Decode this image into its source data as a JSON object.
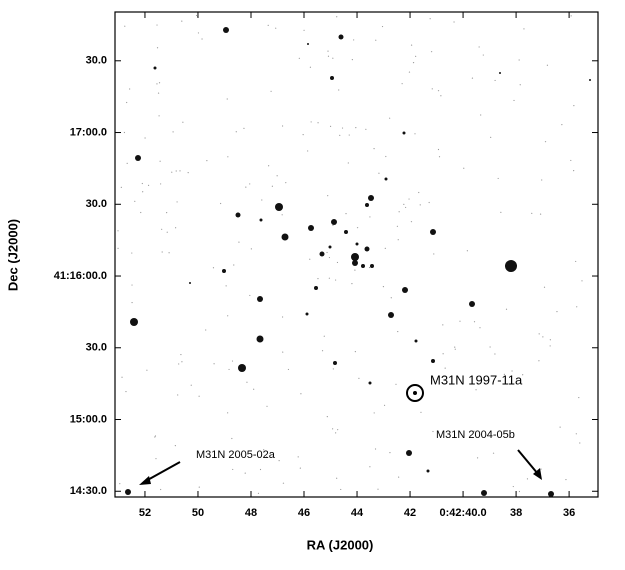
{
  "chart_data": {
    "type": "image",
    "x_label": "RA (J2000)",
    "y_label": "Dec (J2000)",
    "xlim": [
      53.13,
      34.91
    ],
    "ylim": [
      14.46,
      17.84
    ],
    "xticks": [
      52.0,
      50.0,
      48.0,
      46.0,
      44.0,
      42.0,
      {
        "value": 40.0,
        "label": "0:42:40.0"
      },
      38.0,
      36.0
    ],
    "xtick_labels": [
      "52.0",
      "50.0",
      "48.0",
      "46.0",
      "44.0",
      "42.0",
      "0:42:40.0",
      "38.0",
      "36.0"
    ],
    "yticks": [
      {
        "value": 14.5,
        "label": "14:30.0"
      },
      {
        "value": 15.0,
        "label": "15:00.0"
      },
      {
        "value": 15.5,
        "label": "30.0"
      },
      {
        "value": 16.0,
        "label": "41:16:00.0"
      },
      {
        "value": 16.5,
        "label": "30.0"
      },
      {
        "value": 17.0,
        "label": "17:00.0"
      },
      {
        "value": 17.5,
        "label": "30.0"
      }
    ],
    "annotations": [
      "M31N 1997-11a",
      "M31N 2005-02a",
      "M31N 2004-05b"
    ]
  }
}
